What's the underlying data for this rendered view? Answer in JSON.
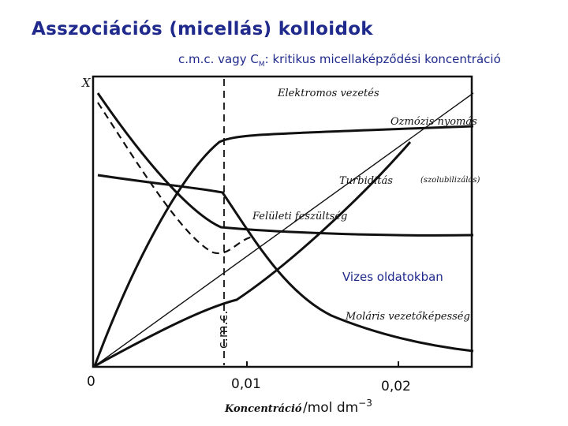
{
  "header": {
    "title": "Asszociációs (micellás) kolloidok",
    "subtitle_prefix": "c.m.c. vagy C",
    "subtitle_sub": "M",
    "subtitle_suffix": ": kritikus micellaképződési koncentráció"
  },
  "figure": {
    "y_axis_label": "X",
    "curves": [
      {
        "id": "electrical",
        "label": "Elektromos vezetés",
        "style": "solid"
      },
      {
        "id": "osmotic",
        "label": "Ozmózis nyomás",
        "style": "solid"
      },
      {
        "id": "turbidity",
        "label": "Turbiditás",
        "note": "(szolubilizálás)",
        "style": "solid"
      },
      {
        "id": "surface_tension",
        "label": "Felületi feszültség",
        "style": "solid"
      },
      {
        "id": "molar_conductivity",
        "label": "Moláris vezetőképesség",
        "style": "solid"
      },
      {
        "id": "dashed",
        "label": "",
        "style": "dashed"
      }
    ],
    "cmc_label": "c.m.c.",
    "x_ticks": [
      "0",
      "0,01",
      "0,02"
    ],
    "x_label_italic": "Koncentráció",
    "x_label_unit": "/mol dm",
    "x_label_exp": "−3",
    "note": "Vizes oldatokban"
  }
}
